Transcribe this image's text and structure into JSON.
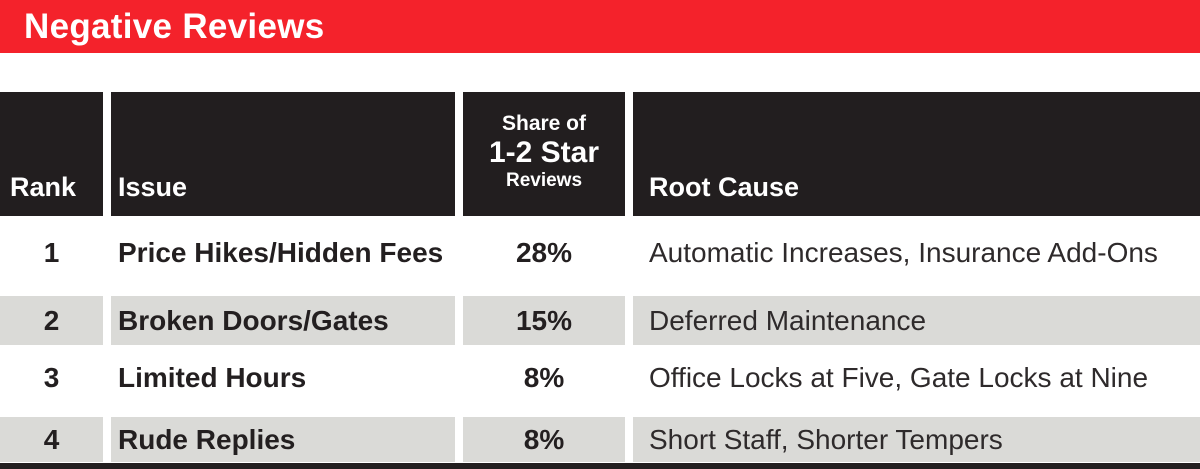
{
  "title": "Negative Reviews",
  "colors": {
    "banner_red": "#f4222b",
    "header_black": "#221e1f",
    "row_gray": "#dadad7",
    "text_dark": "#231f20"
  },
  "header": {
    "rank": "Rank",
    "issue": "Issue",
    "share_line1": "Share of",
    "share_line2": "1-2 Star",
    "share_line3": "Reviews",
    "root_cause": "Root Cause"
  },
  "rows": [
    {
      "rank": "1",
      "issue": "Price Hikes/Hidden Fees",
      "share": "28%",
      "root_cause": "Automatic Increases, Insurance Add-Ons"
    },
    {
      "rank": "2",
      "issue": "Broken Doors/Gates",
      "share": "15%",
      "root_cause": "Deferred Maintenance"
    },
    {
      "rank": "3",
      "issue": "Limited Hours",
      "share": "8%",
      "root_cause": "Office Locks at Five, Gate Locks at Nine"
    },
    {
      "rank": "4",
      "issue": "Rude Replies",
      "share": "8%",
      "root_cause": "Short Staff, Shorter Tempers"
    }
  ],
  "chart_data": {
    "type": "table",
    "title": "Negative Reviews",
    "columns": [
      "Rank",
      "Issue",
      "Share of 1-2 Star Reviews",
      "Root Cause"
    ],
    "rows": [
      [
        "1",
        "Price Hikes/Hidden Fees",
        "28%",
        "Automatic Increases, Insurance Add-Ons"
      ],
      [
        "2",
        "Broken Doors/Gates",
        "15%",
        "Deferred Maintenance"
      ],
      [
        "3",
        "Limited Hours",
        "8%",
        "Office Locks at Five, Gate Locks at Nine"
      ],
      [
        "4",
        "Rude Replies",
        "8%",
        "Short Staff, Shorter Tempers"
      ]
    ],
    "share_values_percent": [
      28,
      15,
      8,
      8
    ]
  }
}
